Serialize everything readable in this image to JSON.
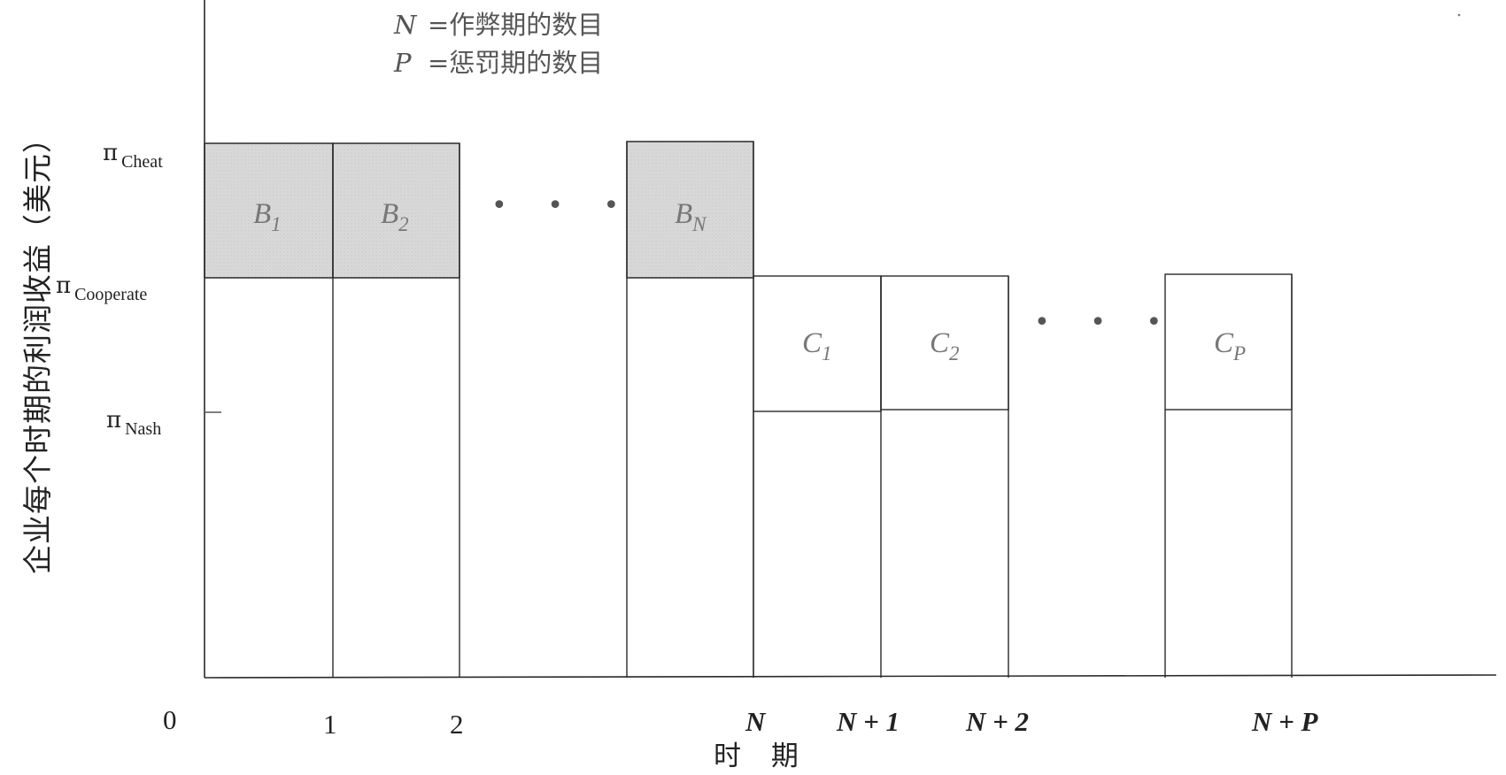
{
  "legend": {
    "n_symbol": "N",
    "n_text": "=作弊期的数目",
    "p_symbol": "P",
    "p_text": "=惩罚期的数目"
  },
  "y_axis": {
    "label": "企业每个时期的利润收益（美元）",
    "levels": [
      {
        "symbol": "π",
        "sub": "Cheat"
      },
      {
        "symbol": "π",
        "sub": "Cooperate"
      },
      {
        "symbol": "π",
        "sub": "Nash"
      }
    ]
  },
  "x_axis": {
    "label": "时 期",
    "ticks": [
      "0",
      "1",
      "2",
      "N",
      "N + 1",
      "N + 2",
      "N + P"
    ]
  },
  "boxes": {
    "b1": {
      "main": "B",
      "sub": "1"
    },
    "b2": {
      "main": "B",
      "sub": "2"
    },
    "bn": {
      "main": "B",
      "sub": "N"
    },
    "c1": {
      "main": "C",
      "sub": "1"
    },
    "c2": {
      "main": "C",
      "sub": "2"
    },
    "cp": {
      "main": "C",
      "sub": "P"
    }
  },
  "ellipsis": "• • •",
  "colors": {
    "shade": "#d7d7d7",
    "line": "#2a2a2a",
    "dots": "#555555"
  }
}
